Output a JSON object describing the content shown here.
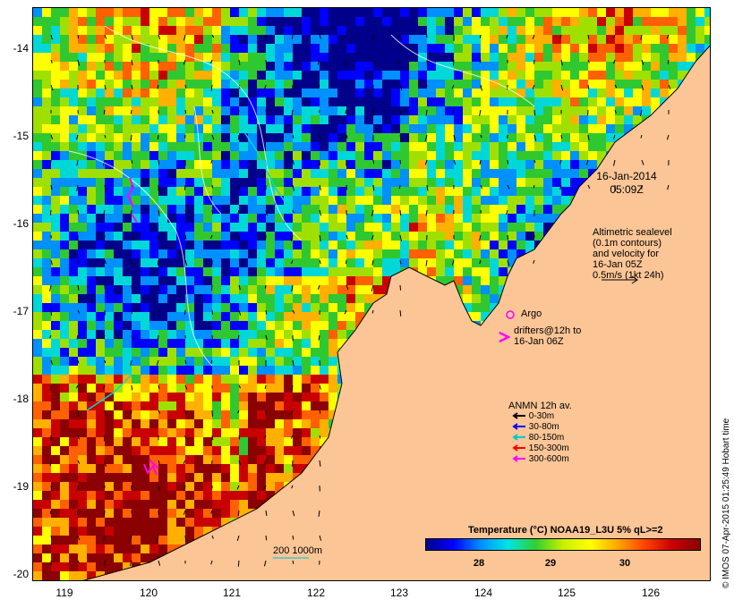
{
  "y_ticks": [
    "-14",
    "-15",
    "-16",
    "-17",
    "-18",
    "-19",
    "-20"
  ],
  "x_ticks": [
    "119",
    "120",
    "121",
    "122",
    "123",
    "124",
    "125",
    "126"
  ],
  "date_line1": "16-Jan-2014",
  "date_line2": "05:09Z",
  "sealevel_text": [
    "Altimetric sealevel",
    "(0.1m contours)",
    "and velocity for",
    "16-Jan 05Z",
    "0.5m/s (1kt 24h)"
  ],
  "argo_label": "Argo",
  "drifters_text": [
    "drifters@12h to",
    "16-Jan 06Z"
  ],
  "anmn_title": "ANMN 12h av.",
  "anmn_legend": [
    {
      "label": "0-30m",
      "color": "#000000"
    },
    {
      "label": "30-80m",
      "color": "#0000ff"
    },
    {
      "label": "80-150m",
      "color": "#00c8c8"
    },
    {
      "label": "150-300m",
      "color": "#ff0000"
    },
    {
      "label": "300-600m",
      "color": "#ff00ff"
    }
  ],
  "colorbar_title": "Temperature (°C) NOAA19_L3U 5% qL>=2",
  "colorbar_ticks": [
    "28",
    "29",
    "30"
  ],
  "depth_legend": "200  1000m",
  "credit": "© IMOS 07-Apr-2015 01:25:49 Hobart time",
  "colors": {
    "land": "#fbc596",
    "hot": "#8b0000",
    "argo": "#ff00ff"
  }
}
